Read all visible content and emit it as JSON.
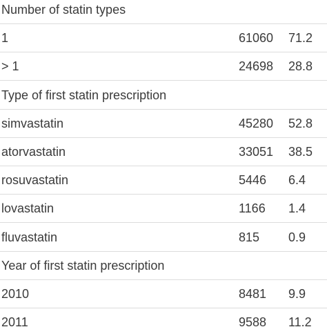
{
  "table": {
    "rows": [
      [
        "Number of statin types"
      ],
      [
        "1",
        "61060",
        "71.2"
      ],
      [
        "> 1",
        "24698",
        "28.8"
      ],
      [
        "Type of first statin prescription"
      ],
      [
        "simvastatin",
        "45280",
        "52.8"
      ],
      [
        "atorvastatin",
        "33051",
        "38.5"
      ],
      [
        "rosuvastatin",
        "5446",
        "6.4"
      ],
      [
        "lovastatin",
        "1166",
        "1.4"
      ],
      [
        "fluvastatin",
        "815",
        "0.9"
      ],
      [
        "Year of first statin prescription"
      ],
      [
        "2010",
        "8481",
        "9.9"
      ],
      [
        "2011",
        "9588",
        "11.2"
      ]
    ]
  }
}
